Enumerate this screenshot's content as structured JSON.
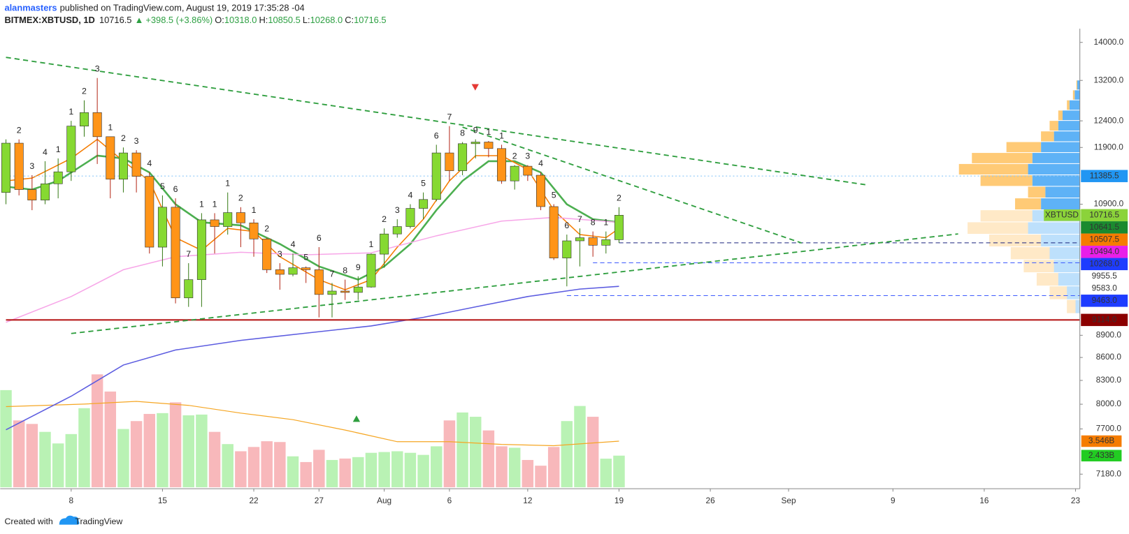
{
  "header": {
    "author": "alanmasters",
    "published": "published on TradingView.com, August 19, 2019 17:35:28 -04",
    "symbol": "BITMEX:XBTUSD, 1D",
    "last": "10716.5",
    "change_arrow": "▲",
    "change": "+398.5 (+3.86%)",
    "ohlc": [
      {
        "key": "O:",
        "value": "10318.0"
      },
      {
        "key": "H:",
        "value": "10850.5"
      },
      {
        "key": "L:",
        "value": "10268.0"
      },
      {
        "key": "C:",
        "value": "10716.5"
      }
    ]
  },
  "footer": {
    "created_with": "Created with",
    "brand": "TradingView"
  },
  "chart_data": {
    "type": "candlestick",
    "log": true,
    "xlim": [
      "2019-07-03",
      "2019-09-23"
    ],
    "ylim": [
      7020,
      14235
    ],
    "volume_ylim": [
      0,
      10
    ],
    "xticks": [
      {
        "value": "2019-07-08",
        "label": "8"
      },
      {
        "value": "2019-07-15",
        "label": "15"
      },
      {
        "value": "2019-07-22",
        "label": "22"
      },
      {
        "value": "2019-07-27",
        "label": "27"
      },
      {
        "value": "2019-08-01",
        "label": "Aug"
      },
      {
        "value": "2019-08-06",
        "label": "6"
      },
      {
        "value": "2019-08-12",
        "label": "12"
      },
      {
        "value": "2019-08-19",
        "label": "19"
      },
      {
        "value": "2019-08-26",
        "label": "26"
      },
      {
        "value": "2019-09-01",
        "label": "Sep"
      },
      {
        "value": "2019-09-09",
        "label": "9"
      },
      {
        "value": "2019-09-16",
        "label": "16"
      },
      {
        "value": "2019-09-23",
        "label": "23"
      }
    ],
    "yticks": [
      {
        "value": 14000,
        "label": "14000.0"
      },
      {
        "value": 13200,
        "label": "13200.0"
      },
      {
        "value": 12400,
        "label": "12400.0"
      },
      {
        "value": 11900,
        "label": "11900.0"
      },
      {
        "value": 10900,
        "label": "10900.0"
      },
      {
        "value": 8900,
        "label": "8900.0"
      },
      {
        "value": 8600,
        "label": "8600.0"
      },
      {
        "value": 8300,
        "label": "8300.0"
      },
      {
        "value": 8000,
        "label": "8000.0"
      },
      {
        "value": 7700,
        "label": "7700.0"
      },
      {
        "value": 7180,
        "label": "7180.0"
      }
    ],
    "up_color": "#86d932",
    "down_color": "#ff9418",
    "volume_up_color": "#b9f2b4",
    "volume_down_color": "#f8b8bb",
    "candles": {
      "dates": [
        "2019-07-03",
        "2019-07-04",
        "2019-07-05",
        "2019-07-06",
        "2019-07-07",
        "2019-07-08",
        "2019-07-09",
        "2019-07-10",
        "2019-07-11",
        "2019-07-12",
        "2019-07-13",
        "2019-07-14",
        "2019-07-15",
        "2019-07-16",
        "2019-07-17",
        "2019-07-18",
        "2019-07-19",
        "2019-07-20",
        "2019-07-21",
        "2019-07-22",
        "2019-07-23",
        "2019-07-24",
        "2019-07-25",
        "2019-07-26",
        "2019-07-27",
        "2019-07-28",
        "2019-07-29",
        "2019-07-30",
        "2019-07-31",
        "2019-08-01",
        "2019-08-02",
        "2019-08-03",
        "2019-08-04",
        "2019-08-05",
        "2019-08-06",
        "2019-08-07",
        "2019-08-08",
        "2019-08-09",
        "2019-08-10",
        "2019-08-11",
        "2019-08-12",
        "2019-08-13",
        "2019-08-14",
        "2019-08-15",
        "2019-08-16",
        "2019-08-17",
        "2019-08-18",
        "2019-08-19"
      ],
      "open": [
        11100,
        11980,
        11150,
        10970,
        11250,
        11460,
        12300,
        12560,
        12100,
        11330,
        11800,
        11380,
        10200,
        10850,
        9430,
        9700,
        10640,
        10530,
        10760,
        10590,
        10330,
        9850,
        9780,
        9880,
        9850,
        9480,
        9530,
        9510,
        9590,
        10090,
        10410,
        10530,
        10830,
        10980,
        11800,
        11480,
        11970,
        12000,
        11880,
        11300,
        11560,
        11400,
        10860,
        10030,
        10300,
        10350,
        10230,
        10318
      ],
      "high": [
        12050,
        12050,
        11400,
        11650,
        11700,
        12400,
        12800,
        13250,
        12100,
        11900,
        11850,
        11450,
        11050,
        11000,
        9950,
        10750,
        10750,
        11100,
        10850,
        10650,
        10350,
        9950,
        10100,
        9900,
        10200,
        9650,
        9700,
        9750,
        10100,
        10500,
        10650,
        10900,
        11100,
        11950,
        12300,
        12000,
        12050,
        12020,
        11950,
        11580,
        11580,
        11450,
        10900,
        10400,
        10500,
        10450,
        10450,
        10850.5
      ],
      "low": [
        10900,
        11050,
        10800,
        10900,
        11000,
        11300,
        12100,
        11600,
        11000,
        11100,
        11100,
        10100,
        9900,
        9350,
        9300,
        9300,
        10100,
        10400,
        10200,
        10050,
        9800,
        9550,
        9750,
        9650,
        9150,
        9150,
        9400,
        9400,
        9580,
        9880,
        10350,
        10500,
        10650,
        10950,
        11300,
        11400,
        11700,
        11720,
        11250,
        11150,
        11300,
        10800,
        10000,
        9600,
        9900,
        10050,
        10100,
        10268
      ],
      "close": [
        11980,
        11150,
        10970,
        11250,
        11460,
        12300,
        12560,
        12100,
        11330,
        11800,
        11380,
        10200,
        10850,
        9430,
        9700,
        10640,
        10530,
        10760,
        10590,
        10330,
        9850,
        9780,
        9880,
        9850,
        9480,
        9530,
        9510,
        9590,
        10090,
        10410,
        10530,
        10830,
        10980,
        11800,
        11480,
        11970,
        12000,
        11880,
        11300,
        11560,
        11400,
        10860,
        10030,
        10300,
        10350,
        10230,
        10318,
        10716.5
      ],
      "volume": [
        7.47,
        5.14,
        4.87,
        4.26,
        3.37,
        4.09,
        6.08,
        8.68,
        7.36,
        4.48,
        5.09,
        5.64,
        5.7,
        6.53,
        5.53,
        5.59,
        4.26,
        3.32,
        2.77,
        3.1,
        3.54,
        3.48,
        2.38,
        1.94,
        2.88,
        2.1,
        2.21,
        2.32,
        2.65,
        2.71,
        2.77,
        2.65,
        2.49,
        3.15,
        5.14,
        5.75,
        5.42,
        4.37,
        3.15,
        3.04,
        2.1,
        1.66,
        3.1,
        5.09,
        6.25,
        5.42,
        2.2,
        2.433
      ]
    },
    "td_labels": {
      "texts": [
        null,
        "2",
        "3",
        "4",
        "1",
        "1",
        "2",
        "3",
        "1",
        "2",
        "3",
        "4",
        "5",
        "6",
        "7",
        "1",
        "1",
        "1",
        "2",
        "1",
        "2",
        "3",
        "4",
        "5",
        "6",
        "7",
        "8",
        "9",
        "1",
        "2",
        "3",
        "4",
        "5",
        "6",
        "7",
        "8",
        "9",
        "1",
        "1",
        "2",
        "3",
        "4",
        "5",
        "6",
        "7",
        "8",
        "1",
        "2"
      ],
      "colors": [
        null,
        "#62bb62",
        "#62bb62",
        "#62bb62",
        "#f07070",
        "#62bb62",
        "#62bb62",
        "#62bb62",
        "#f07070",
        "#f07070",
        "#f07070",
        "#f07070",
        "#f07070",
        "#f07070",
        "#f07070",
        "#62bb62",
        "#f07070",
        "#62bb62",
        "#62bb62",
        "#f07070",
        "#f07070",
        "#f07070",
        "#f07070",
        "#f07070",
        "#f07070",
        "#f07070",
        "#c62828",
        "#e53935",
        "#62bb62",
        "#62bb62",
        "#62bb62",
        "#62bb62",
        "#62bb62",
        "#62bb62",
        "#62bb62",
        "#1b8a2f",
        "#1b8a2f",
        "#62bb62",
        "#f07070",
        "#f07070",
        "#f07070",
        "#f07070",
        "#f07070",
        "#f07070",
        "#f07070",
        "#e53935",
        "#62bb62",
        "#62bb62"
      ]
    },
    "lines": [
      {
        "color": "#4caf50",
        "width": 2.5,
        "x": [
          "2019-07-03",
          "2019-07-05",
          "2019-07-07",
          "2019-07-10",
          "2019-07-12",
          "2019-07-14",
          "2019-07-16",
          "2019-07-18",
          "2019-07-21",
          "2019-07-24",
          "2019-07-27",
          "2019-07-30",
          "2019-08-01",
          "2019-08-03",
          "2019-08-05",
          "2019-08-07",
          "2019-08-09",
          "2019-08-11",
          "2019-08-13",
          "2019-08-15",
          "2019-08-17",
          "2019-08-19"
        ],
        "values": [
          11200,
          11150,
          11300,
          11750,
          11700,
          11450,
          10900,
          10600,
          10550,
          10250,
          9900,
          9700,
          9900,
          10250,
          10800,
          11300,
          11650,
          11650,
          11450,
          10900,
          10650,
          10600
        ]
      },
      {
        "color": "#f57c00",
        "width": 1.5,
        "x": [
          "2019-07-03",
          "2019-07-05",
          "2019-07-08",
          "2019-07-10",
          "2019-07-12",
          "2019-07-14",
          "2019-07-16",
          "2019-07-18",
          "2019-07-20",
          "2019-07-22",
          "2019-07-24",
          "2019-07-27",
          "2019-07-29",
          "2019-07-31",
          "2019-08-02",
          "2019-08-04",
          "2019-08-06",
          "2019-08-08",
          "2019-08-10",
          "2019-08-12",
          "2019-08-14",
          "2019-08-16",
          "2019-08-18",
          "2019-08-19"
        ],
        "values": [
          11300,
          11350,
          11700,
          12050,
          11650,
          11300,
          10350,
          10150,
          10500,
          10450,
          10050,
          9700,
          9550,
          9700,
          10200,
          10650,
          11300,
          11750,
          11750,
          11500,
          10800,
          10400,
          10350,
          10500
        ]
      },
      {
        "color": "#f7a6e8",
        "width": 1.5,
        "x": [
          "2019-07-03",
          "2019-07-08",
          "2019-07-12",
          "2019-07-16",
          "2019-07-21",
          "2019-07-26",
          "2019-07-31",
          "2019-08-05",
          "2019-08-10",
          "2019-08-14",
          "2019-08-19"
        ],
        "values": [
          9080,
          9450,
          9850,
          10050,
          10120,
          10080,
          10110,
          10380,
          10620,
          10680,
          10600
        ]
      },
      {
        "color": "#5c5ce0",
        "width": 1.5,
        "x": [
          "2019-07-03",
          "2019-07-08",
          "2019-07-12",
          "2019-07-16",
          "2019-07-21",
          "2019-07-26",
          "2019-07-31",
          "2019-08-04",
          "2019-08-08",
          "2019-08-12",
          "2019-08-16",
          "2019-08-19"
        ],
        "values": [
          7690,
          8100,
          8500,
          8700,
          8830,
          8930,
          9030,
          9150,
          9300,
          9450,
          9560,
          9600
        ]
      }
    ],
    "volume_ma": {
      "color": "#f5a623",
      "x": [
        "2019-07-03",
        "2019-07-09",
        "2019-07-13",
        "2019-07-17",
        "2019-07-21",
        "2019-07-25",
        "2019-07-29",
        "2019-08-02",
        "2019-08-06",
        "2019-08-10",
        "2019-08-14",
        "2019-08-19"
      ],
      "values": [
        6.2,
        6.4,
        6.6,
        6.3,
        5.7,
        5.2,
        4.4,
        3.5,
        3.5,
        3.3,
        3.2,
        3.546
      ]
    },
    "trendline_color": "#2e9e3e",
    "trendlines": [
      {
        "x": [
          "2019-07-03",
          "2019-09-07"
        ],
        "values": [
          13680,
          11230
        ]
      },
      {
        "x": [
          "2019-07-08",
          "2019-09-14"
        ],
        "values": [
          8925,
          10410
        ]
      },
      {
        "x": [
          "2019-08-07",
          "2019-09-02"
        ],
        "values": [
          12280,
          10266
        ]
      }
    ],
    "price_labels": [
      {
        "value": 11385.5,
        "label": "11385.5",
        "color": "#2196f3",
        "text_color": "#ffffff",
        "line_from": "2019-07-03",
        "line_style": "dotted",
        "line_color": "#90caf9"
      },
      {
        "name": "XBTUSD",
        "value": 10716.5,
        "label": "10716.5",
        "color": "#8bd33a",
        "text_color": "#000000"
      },
      {
        "value": 10641.5,
        "label": "10641.5",
        "color": "#1b8a2f",
        "text_color": "#ffffff"
      },
      {
        "value": 10507.5,
        "label": "10507.5",
        "color": "#f57c00",
        "text_color": "#ffffff"
      },
      {
        "value": 10494.0,
        "label": "10494.0",
        "color": "#e91ee9",
        "text_color": "#ffffff"
      },
      {
        "value": 10268.0,
        "label": "10268.0",
        "color": "#1e3cff",
        "text_color": "#ffffff",
        "line_from": "2019-08-19",
        "line_style": "dashed",
        "line_color": "#1a237e"
      },
      {
        "value": 9955.5,
        "label": "9955.5",
        "color": "#ffffff",
        "text_color": "#000000",
        "line_from": "2019-08-17",
        "line_style": "dashed",
        "line_color": "#3d5afe"
      },
      {
        "value": 9583.0,
        "label": "9583.0",
        "color": "#ffffff",
        "text_color": "#000000"
      },
      {
        "value": 9463.0,
        "label": "9463.0",
        "color": "#1e3cff",
        "text_color": "#ffffff",
        "line_from": "2019-08-15",
        "line_style": "dashed",
        "line_color": "#3d5afe"
      },
      {
        "value": 9114.0,
        "label": "9114.0",
        "color": "#8b0000",
        "text_color": "#ffffff",
        "line_from": "2019-07-03",
        "line_style": "solid",
        "line_color": "#b71c1c"
      }
    ],
    "volume_labels": [
      {
        "value": 3.546,
        "label": "3.546B",
        "color": "#f57c00",
        "text_color": "#ffffff"
      },
      {
        "value": 2.433,
        "label": "2.433B",
        "color": "#22cc22",
        "text_color": "#000000"
      }
    ],
    "volume_profile": {
      "colors": [
        "#42a5f5",
        "#ffc15e"
      ],
      "prices": [
        9300,
        9500,
        9700,
        9900,
        10100,
        10300,
        10500,
        10700,
        10900,
        11100,
        11300,
        11500,
        11700,
        11900,
        12100,
        12300,
        12500,
        12700,
        12900,
        13100
      ],
      "up": [
        5,
        15,
        25,
        30,
        35,
        45,
        60,
        55,
        45,
        40,
        55,
        60,
        55,
        45,
        30,
        25,
        20,
        12,
        6,
        3
      ],
      "down": [
        10,
        20,
        25,
        35,
        45,
        60,
        70,
        60,
        30,
        20,
        60,
        80,
        70,
        40,
        15,
        10,
        5,
        3,
        2,
        1
      ]
    }
  }
}
